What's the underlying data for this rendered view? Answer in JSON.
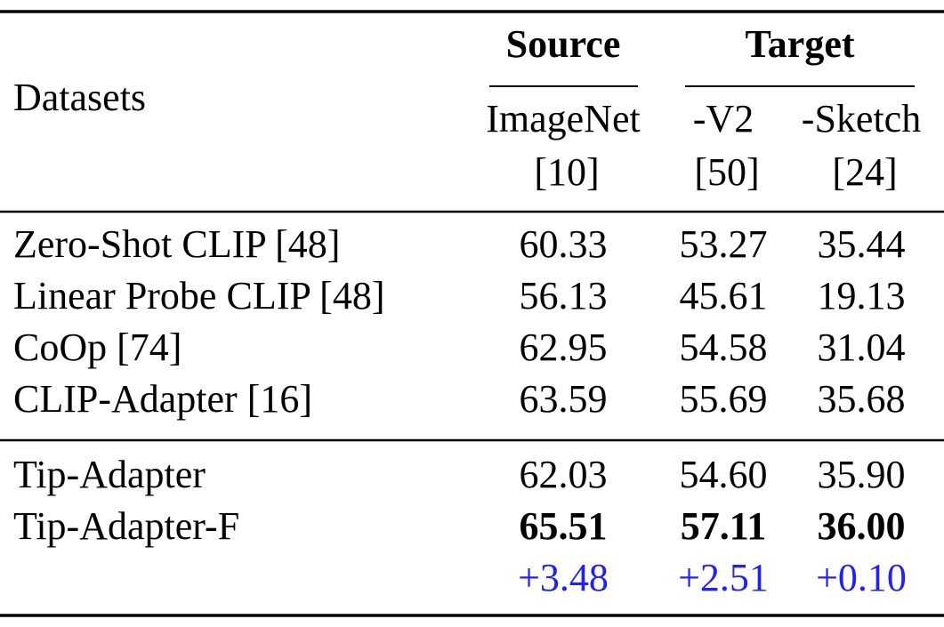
{
  "table": {
    "header": {
      "datasets": "Datasets",
      "source": "Source",
      "target": "Target",
      "columns": [
        [
          "ImageNet",
          "[10]"
        ],
        [
          "-V2",
          "[50]"
        ],
        [
          "-Sketch",
          "[24]"
        ]
      ]
    },
    "rows": [
      [
        "Zero-Shot CLIP [48]",
        "60.33",
        "53.27",
        "35.44"
      ],
      [
        "Linear Probe CLIP [48]",
        "56.13",
        "45.61",
        "19.13"
      ],
      [
        "CoOp [74]",
        "62.95",
        "54.58",
        "31.04"
      ],
      [
        "CLIP-Adapter [16]",
        "63.59",
        "55.69",
        "35.68"
      ]
    ],
    "tip_rows": [
      [
        "Tip-Adapter",
        "62.03",
        "54.60",
        "35.90"
      ],
      [
        "Tip-Adapter-F",
        "65.51",
        "57.11",
        "36.00"
      ]
    ],
    "gains": [
      "+3.48",
      "+2.51",
      "+0.10"
    ]
  }
}
